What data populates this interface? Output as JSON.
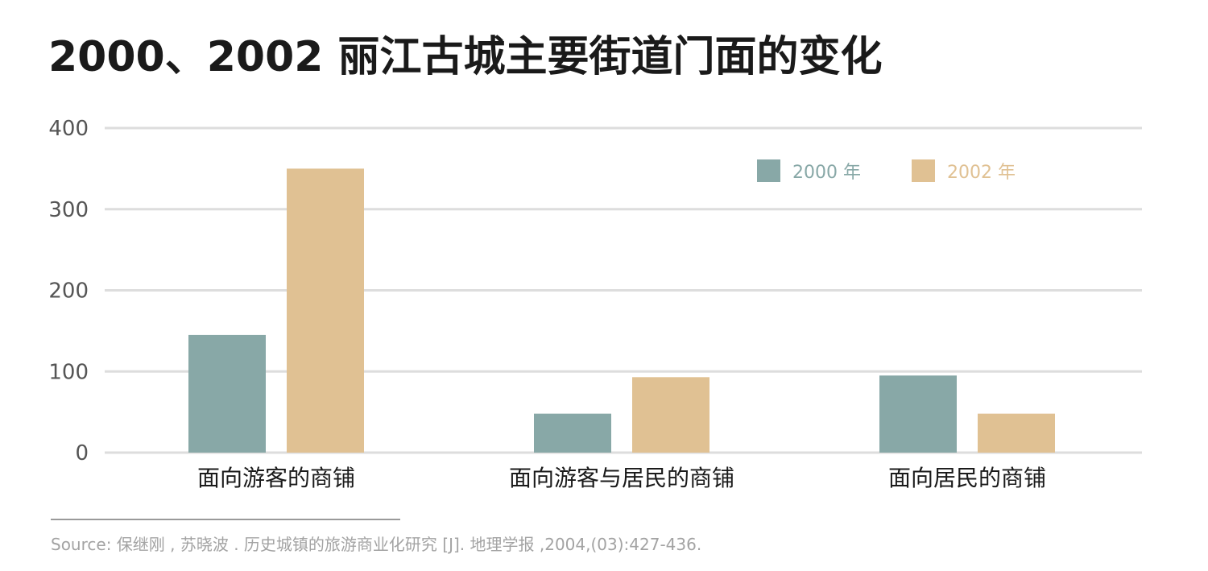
{
  "colors": {
    "series_2000": "#88a8a7",
    "series_2002": "#e0c193",
    "grid": "#dddddd",
    "title": "#1a1a1a"
  },
  "chart_data": {
    "type": "bar",
    "title": "2000、2002 丽江古城主要街道门面的变化",
    "categories": [
      "面向游客的商铺",
      "面向游客与居民的商铺",
      "面向居民的商铺"
    ],
    "series": [
      {
        "name": "2000 年",
        "values": [
          145,
          48,
          95
        ]
      },
      {
        "name": "2002 年",
        "values": [
          350,
          93,
          48
        ]
      }
    ],
    "yticks": [
      0,
      100,
      200,
      300,
      400
    ],
    "ylim": [
      0,
      400
    ],
    "xlabel": "",
    "ylabel": "",
    "grid": true,
    "legend_position": "top-right"
  },
  "source": "Source: 保继刚 , 苏晓波 . 历史城镇的旅游商业化研究 [J]. 地理学报 ,2004,(03):427-436."
}
